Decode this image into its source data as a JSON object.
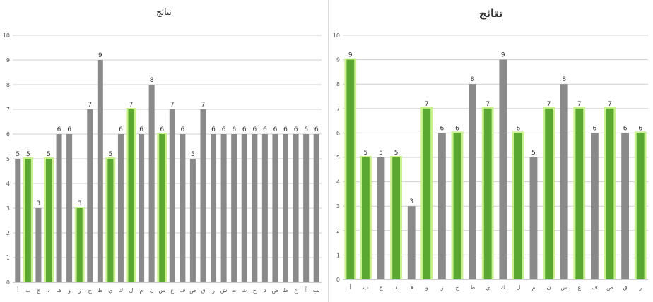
{
  "chart_data": [
    {
      "type": "bar",
      "title": "نتائج",
      "ylim": [
        0,
        10
      ],
      "grid": true,
      "categories": [
        "أ",
        "ب",
        "ج",
        "د",
        "هـ",
        "و",
        "ز",
        "ح",
        "ط",
        "ي",
        "ك",
        "ل",
        "م",
        "ن",
        "س",
        "ع",
        "ف",
        "ص",
        "ق",
        "ر",
        "ش",
        "ت",
        "ث",
        "خ",
        "ذ",
        "ض",
        "ظ",
        "غ",
        "أأ",
        "بب"
      ],
      "values": [
        5,
        5,
        3,
        5,
        6,
        6,
        3,
        7,
        9,
        5,
        6,
        7,
        6,
        8,
        6,
        7,
        6,
        5,
        7,
        6,
        6,
        6,
        6,
        6,
        6,
        6,
        6,
        6,
        6,
        6
      ]
    },
    {
      "type": "bar",
      "title": "نتائج",
      "ylim": [
        0,
        10
      ],
      "grid": true,
      "categories": [
        "أ",
        "ب",
        "ج",
        "د",
        "هـ",
        "و",
        "ز",
        "ح",
        "ط",
        "ي",
        "ك",
        "ل",
        "م",
        "ن",
        "س",
        "ع",
        "ف",
        "ص",
        "ق",
        "ر"
      ],
      "values": [
        9,
        5,
        5,
        5,
        3,
        7,
        6,
        6,
        8,
        7,
        9,
        6,
        5,
        7,
        8,
        7,
        6,
        7,
        6,
        6
      ]
    }
  ],
  "colors": {
    "bar_gray": "#8a8a8a",
    "bar_green": "#5aa832",
    "bar_green_light": "#c8f08c"
  }
}
